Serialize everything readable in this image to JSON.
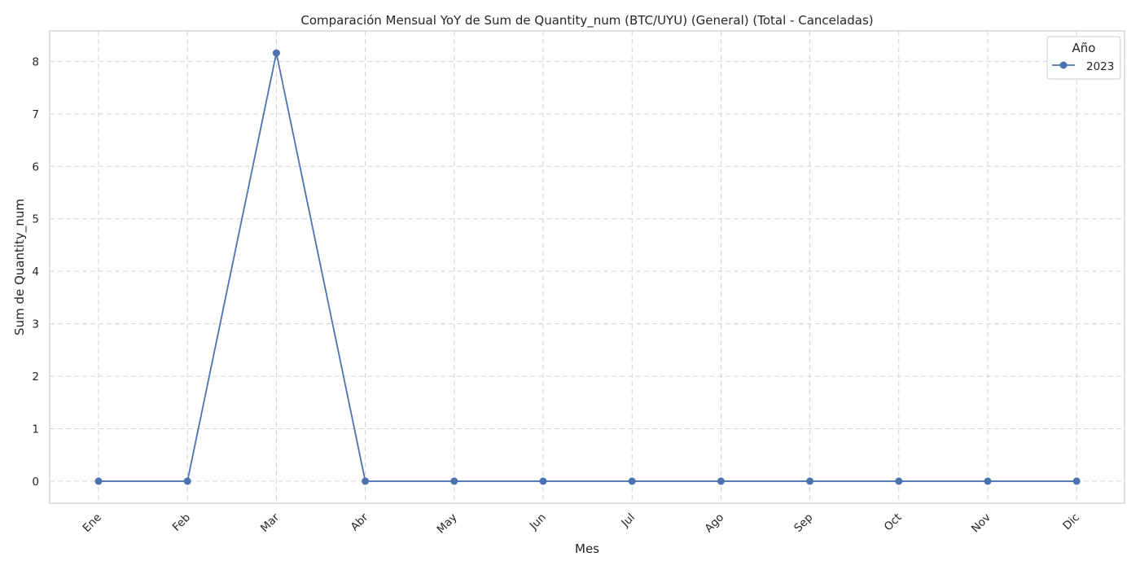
{
  "chart_data": {
    "type": "line",
    "title": "Comparación Mensual YoY de Sum de Quantity_num (BTC/UYU) (General) (Total - Canceladas)",
    "xlabel": "Mes",
    "ylabel": "Sum de Quantity_num",
    "categories": [
      "Ene",
      "Feb",
      "Mar",
      "Abr",
      "May",
      "Jun",
      "Jul",
      "Ago",
      "Sep",
      "Oct",
      "Nov",
      "Dic"
    ],
    "yticks": [
      0,
      1,
      2,
      3,
      4,
      5,
      6,
      7,
      8
    ],
    "ylim": [
      -0.42,
      8.58
    ],
    "grid": true,
    "legend": {
      "title": "Año",
      "placement": "top-right"
    },
    "series": [
      {
        "name": "2023",
        "color": "#4c72b0",
        "marker": "circle",
        "values": [
          0,
          0,
          8.16,
          0,
          0,
          0,
          0,
          0,
          0,
          0,
          0,
          0
        ]
      }
    ]
  }
}
